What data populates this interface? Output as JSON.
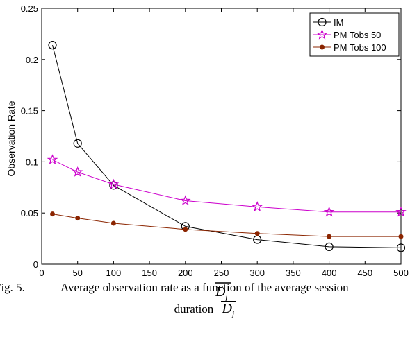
{
  "chart_data": {
    "type": "line",
    "title": "",
    "xlabel": "D",
    "xlabel_subscript": "j",
    "ylabel": "Observation Rate",
    "xlim": [
      0,
      500
    ],
    "ylim": [
      0,
      0.25
    ],
    "xticks": [
      0,
      50,
      100,
      150,
      200,
      250,
      300,
      350,
      400,
      450,
      500
    ],
    "xtick_labels": [
      "0",
      "50",
      "100",
      "150",
      "200",
      "250",
      "300",
      "350",
      "400",
      "450",
      "500"
    ],
    "yticks": [
      0,
      0.05,
      0.1,
      0.15,
      0.2,
      0.25
    ],
    "ytick_labels": [
      "0",
      "0.05",
      "0.1",
      "0.15",
      "0.2",
      "0.25"
    ],
    "grid": false,
    "legend_position": "top-right",
    "x": [
      15,
      50,
      100,
      200,
      300,
      400,
      500
    ],
    "series": [
      {
        "name": "IM",
        "marker": "circle",
        "color": "#000000",
        "values": [
          0.214,
          0.118,
          0.077,
          0.037,
          0.024,
          0.017,
          0.016
        ]
      },
      {
        "name": "PM Tobs 50",
        "marker": "star",
        "color": "#cc00cc",
        "values": [
          0.102,
          0.09,
          0.078,
          0.062,
          0.056,
          0.051,
          0.051
        ]
      },
      {
        "name": "PM Tobs 100",
        "marker": "dot",
        "color": "#8b2500",
        "values": [
          0.049,
          0.045,
          0.04,
          0.034,
          0.03,
          0.027,
          0.027
        ]
      }
    ]
  },
  "caption": {
    "fig_label": "Fig. 5.",
    "line1": "Average observation rate as a function of the average session",
    "line2_prefix": "duration",
    "symbol": "D",
    "symbol_subscript": "j"
  }
}
